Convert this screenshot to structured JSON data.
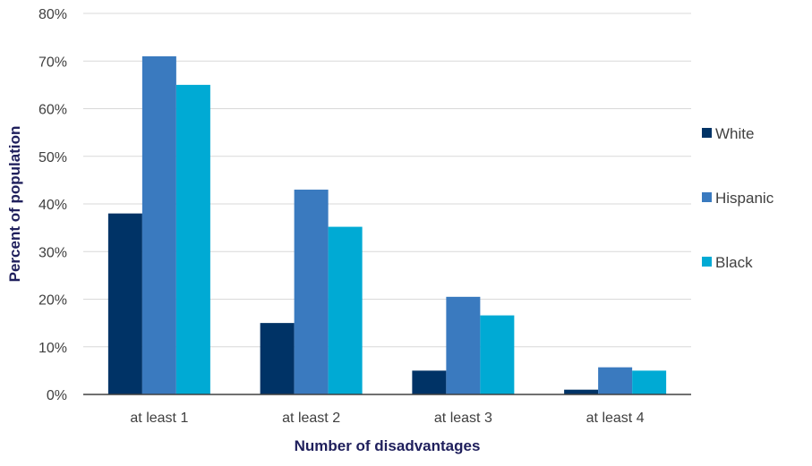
{
  "chart_data": {
    "type": "bar",
    "title": "",
    "xlabel": "Number of disadvantages",
    "ylabel": "Percent of population",
    "categories": [
      "at least 1",
      "at least 2",
      "at least 3",
      "at least 4"
    ],
    "series": [
      {
        "name": "White",
        "color": "#003366",
        "values": [
          38,
          15,
          5,
          1
        ]
      },
      {
        "name": "Hispanic",
        "color": "#3a7abf",
        "values": [
          71,
          43,
          20.5,
          5.7
        ]
      },
      {
        "name": "Black",
        "color": "#00aad4",
        "values": [
          65,
          35.2,
          16.6,
          5
        ]
      }
    ],
    "ylim": [
      0,
      80
    ],
    "yticks": [
      0,
      10,
      20,
      30,
      40,
      50,
      60,
      70,
      80
    ],
    "ytick_labels": [
      "0%",
      "10%",
      "20%",
      "30%",
      "40%",
      "50%",
      "60%",
      "70%",
      "80%"
    ],
    "grid": true,
    "legend_position": "right"
  }
}
